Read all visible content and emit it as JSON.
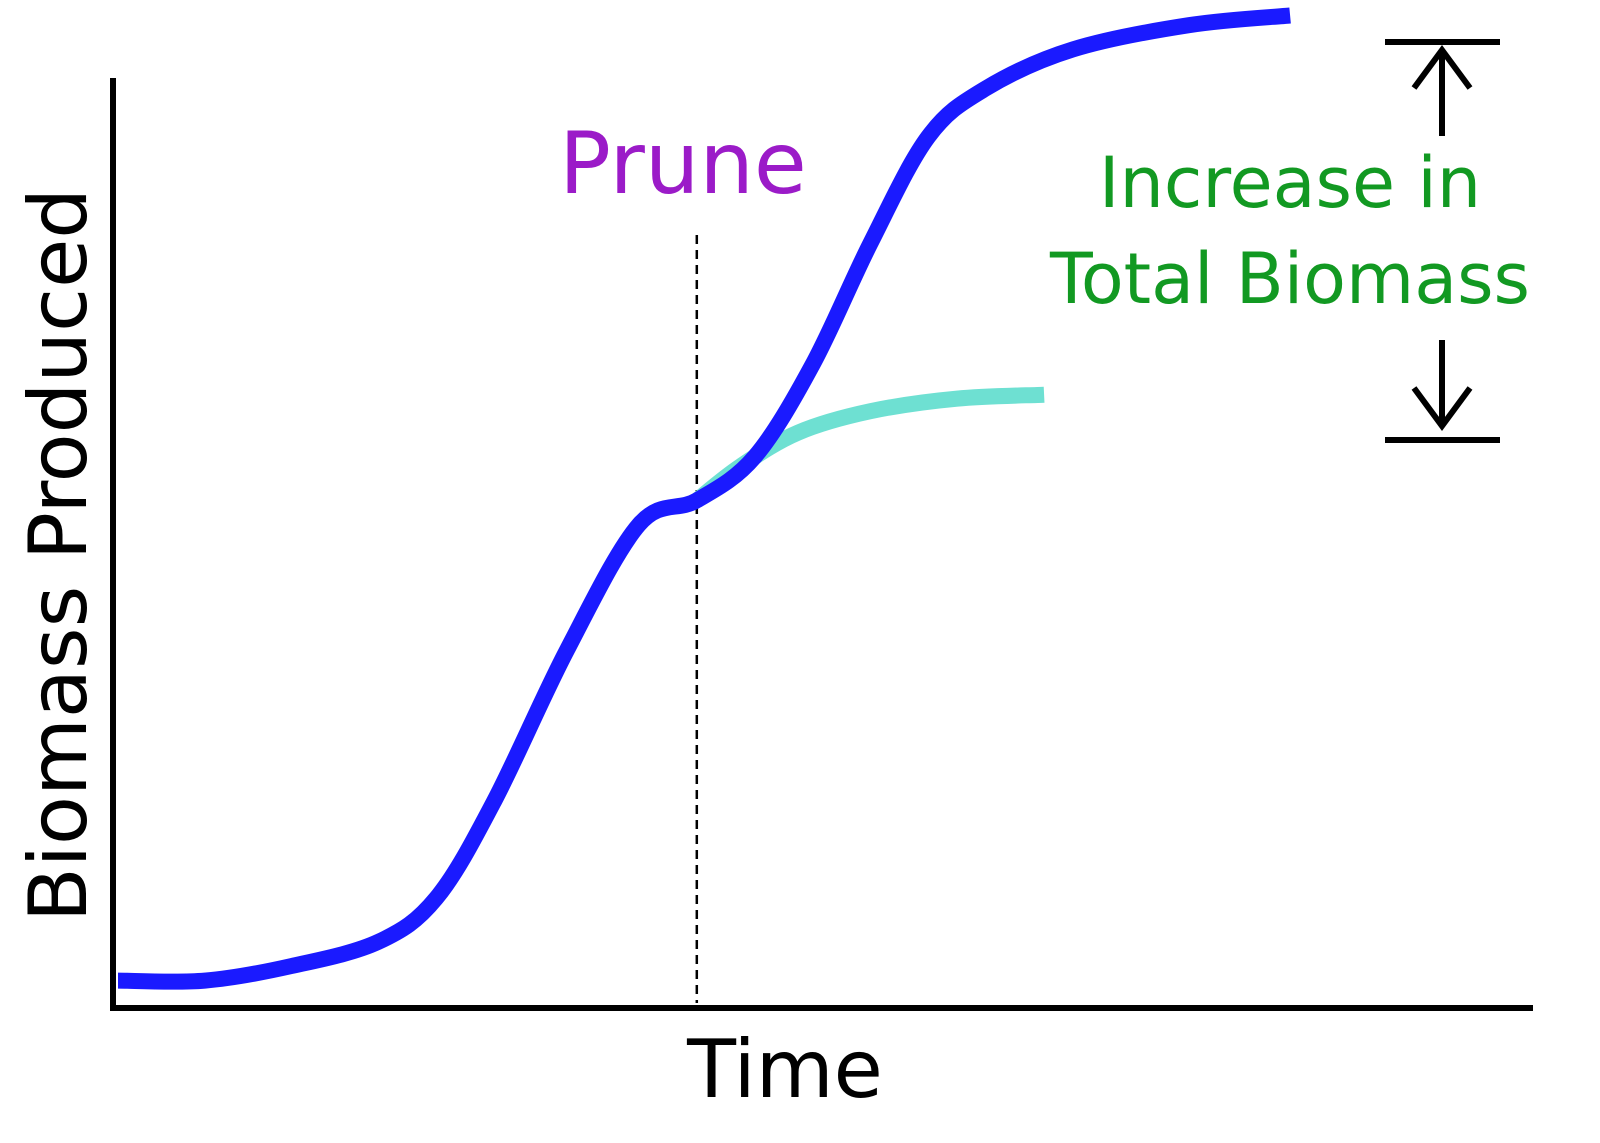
{
  "chart_data": {
    "type": "line",
    "xlabel": "Time",
    "ylabel": "Biomass Produced",
    "x_range": [
      0,
      100
    ],
    "y_range": [
      0,
      100
    ],
    "grid": false,
    "annotations": {
      "event_label": "Prune",
      "event_x": 40,
      "increase_label_line1": "Increase in",
      "increase_label_line2": "Total Biomass"
    },
    "series": [
      {
        "key": "with_pruning",
        "color": "#1a1aff",
        "points": [
          [
            0,
            2
          ],
          [
            6,
            2
          ],
          [
            12,
            3.5
          ],
          [
            18,
            6
          ],
          [
            22,
            10.5
          ],
          [
            26,
            20.5
          ],
          [
            31,
            36
          ],
          [
            36,
            49
          ],
          [
            40,
            51.5
          ],
          [
            44,
            56
          ],
          [
            48,
            65.5
          ],
          [
            52,
            78
          ],
          [
            56,
            89
          ],
          [
            60,
            94
          ],
          [
            66,
            98
          ],
          [
            74,
            100.5
          ],
          [
            81,
            101.5
          ]
        ]
      },
      {
        "key": "without_pruning",
        "color": "#6ee0d2",
        "points": [
          [
            40,
            51.5
          ],
          [
            43,
            55
          ],
          [
            47,
            58.5
          ],
          [
            52,
            60.7
          ],
          [
            58,
            62
          ],
          [
            64,
            62.4
          ]
        ]
      }
    ],
    "colors": {
      "axis": "#000000",
      "prune_text": "#9b1bc8",
      "increase_text": "#129922",
      "axis_label_text": "#000000"
    }
  }
}
